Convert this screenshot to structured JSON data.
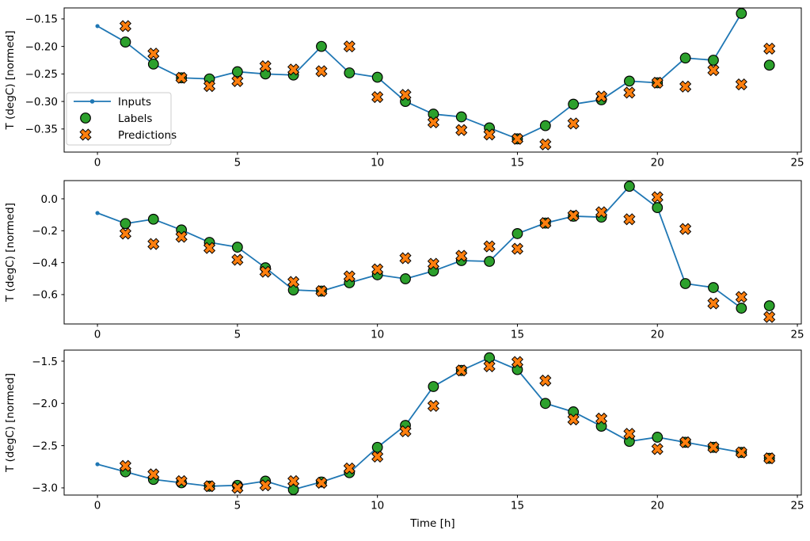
{
  "figure": {
    "xlabel": "Time [h]",
    "ylabel": "T (degC) [normed]",
    "legend": {
      "position": "upper-left-of-first-subplot",
      "items": [
        {
          "label": "Inputs",
          "marker": "line-dot",
          "color": "#1f77b4"
        },
        {
          "label": "Labels",
          "marker": "circle",
          "color": "#2ca02c"
        },
        {
          "label": "Predictions",
          "marker": "x",
          "color": "#ff7f0e"
        }
      ]
    },
    "colors": {
      "inputs_line": "#1f77b4",
      "labels_fill": "#2ca02c",
      "predictions_fill": "#ff7f0e",
      "marker_edge": "#000000",
      "axes": "#000000",
      "background": "#ffffff",
      "legend_border": "#cccccc"
    }
  },
  "chart_data": [
    {
      "type": "line",
      "subplot": 1,
      "title": "",
      "xlabel": "",
      "ylabel": "T (degC) [normed]",
      "grid": false,
      "xlim": [
        -1.19,
        25.14
      ],
      "ylim": [
        -0.392,
        -0.13
      ],
      "xticks": [
        0,
        5,
        10,
        15,
        20,
        25
      ],
      "xticklabels": [
        "0",
        "5",
        "10",
        "15",
        "20",
        "25"
      ],
      "yticks": [
        -0.15,
        -0.2,
        -0.25,
        -0.3,
        -0.35
      ],
      "yticklabels": [
        "−0.15",
        "−0.20",
        "−0.25",
        "−0.30",
        "−0.35"
      ],
      "series": [
        {
          "name": "Inputs",
          "style": "line-dot",
          "x": [
            0,
            1,
            2,
            3,
            4,
            5,
            6,
            7,
            8,
            9,
            10,
            11,
            12,
            13,
            14,
            15,
            16,
            17,
            18,
            19,
            20,
            21,
            22,
            23
          ],
          "y": [
            -0.163,
            -0.192,
            -0.232,
            -0.257,
            -0.259,
            -0.246,
            -0.25,
            -0.252,
            -0.2,
            -0.248,
            -0.256,
            -0.3,
            -0.323,
            -0.328,
            -0.348,
            -0.368,
            -0.344,
            -0.305,
            -0.297,
            -0.263,
            -0.266,
            -0.221,
            -0.225,
            -0.14
          ]
        },
        {
          "name": "Labels",
          "style": "circle",
          "x": [
            1,
            2,
            3,
            4,
            5,
            6,
            7,
            8,
            9,
            10,
            11,
            12,
            13,
            14,
            15,
            16,
            17,
            18,
            19,
            20,
            21,
            22,
            23,
            24
          ],
          "y": [
            -0.192,
            -0.232,
            -0.257,
            -0.259,
            -0.246,
            -0.25,
            -0.252,
            -0.2,
            -0.248,
            -0.256,
            -0.3,
            -0.323,
            -0.328,
            -0.348,
            -0.368,
            -0.344,
            -0.305,
            -0.297,
            -0.263,
            -0.266,
            -0.221,
            -0.225,
            -0.14,
            -0.234
          ]
        },
        {
          "name": "Predictions",
          "style": "x",
          "x": [
            1,
            2,
            3,
            4,
            5,
            6,
            7,
            8,
            9,
            10,
            11,
            12,
            13,
            14,
            15,
            16,
            17,
            18,
            19,
            20,
            21,
            22,
            23,
            24
          ],
          "y": [
            -0.163,
            -0.213,
            -0.257,
            -0.272,
            -0.263,
            -0.236,
            -0.242,
            -0.245,
            -0.2,
            -0.292,
            -0.288,
            -0.338,
            -0.352,
            -0.36,
            -0.368,
            -0.378,
            -0.34,
            -0.291,
            -0.284,
            -0.266,
            -0.273,
            -0.243,
            -0.269,
            -0.204
          ]
        }
      ]
    },
    {
      "type": "line",
      "subplot": 2,
      "title": "",
      "xlabel": "",
      "ylabel": "T (degC) [normed]",
      "grid": false,
      "xlim": [
        -1.19,
        25.14
      ],
      "ylim": [
        -0.784,
        0.114
      ],
      "xticks": [
        0,
        5,
        10,
        15,
        20,
        25
      ],
      "xticklabels": [
        "0",
        "5",
        "10",
        "15",
        "20",
        "25"
      ],
      "yticks": [
        0.0,
        -0.2,
        -0.4,
        -0.6
      ],
      "yticklabels": [
        "0.0",
        "−0.2",
        "−0.4",
        "−0.6"
      ],
      "series": [
        {
          "name": "Inputs",
          "style": "line-dot",
          "x": [
            0,
            1,
            2,
            3,
            4,
            5,
            6,
            7,
            8,
            9,
            10,
            11,
            12,
            13,
            14,
            15,
            16,
            17,
            18,
            19,
            20,
            21,
            22,
            23
          ],
          "y": [
            -0.089,
            -0.155,
            -0.128,
            -0.195,
            -0.273,
            -0.303,
            -0.432,
            -0.571,
            -0.578,
            -0.526,
            -0.476,
            -0.501,
            -0.452,
            -0.387,
            -0.392,
            -0.218,
            -0.152,
            -0.109,
            -0.115,
            0.078,
            -0.055,
            -0.531,
            -0.556,
            -0.685
          ]
        },
        {
          "name": "Labels",
          "style": "circle",
          "x": [
            1,
            2,
            3,
            4,
            5,
            6,
            7,
            8,
            9,
            10,
            11,
            12,
            13,
            14,
            15,
            16,
            17,
            18,
            19,
            20,
            21,
            22,
            23,
            24
          ],
          "y": [
            -0.155,
            -0.128,
            -0.195,
            -0.273,
            -0.303,
            -0.432,
            -0.571,
            -0.578,
            -0.526,
            -0.476,
            -0.501,
            -0.452,
            -0.387,
            -0.392,
            -0.218,
            -0.152,
            -0.109,
            -0.115,
            0.078,
            -0.055,
            -0.531,
            -0.556,
            -0.685,
            -0.67
          ]
        },
        {
          "name": "Predictions",
          "style": "x",
          "x": [
            1,
            2,
            3,
            4,
            5,
            6,
            7,
            8,
            9,
            10,
            11,
            12,
            13,
            14,
            15,
            16,
            17,
            18,
            19,
            20,
            21,
            22,
            23,
            24
          ],
          "y": [
            -0.218,
            -0.283,
            -0.238,
            -0.308,
            -0.382,
            -0.457,
            -0.521,
            -0.578,
            -0.486,
            -0.442,
            -0.372,
            -0.407,
            -0.357,
            -0.298,
            -0.313,
            -0.152,
            -0.105,
            -0.084,
            -0.128,
            0.01,
            -0.189,
            -0.655,
            -0.615,
            -0.74
          ]
        }
      ]
    },
    {
      "type": "line",
      "subplot": 3,
      "title": "",
      "xlabel": "Time [h]",
      "ylabel": "T (degC) [normed]",
      "grid": false,
      "xlim": [
        -1.19,
        25.14
      ],
      "ylim": [
        -3.085,
        -1.369
      ],
      "xticks": [
        0,
        5,
        10,
        15,
        20,
        25
      ],
      "xticklabels": [
        "0",
        "5",
        "10",
        "15",
        "20",
        "25"
      ],
      "yticks": [
        -1.5,
        -2.0,
        -2.5,
        -3.0
      ],
      "yticklabels": [
        "−1.5",
        "−2.0",
        "−2.5",
        "−3.0"
      ],
      "series": [
        {
          "name": "Inputs",
          "style": "line-dot",
          "x": [
            0,
            1,
            2,
            3,
            4,
            5,
            6,
            7,
            8,
            9,
            10,
            11,
            12,
            13,
            14,
            15,
            16,
            17,
            18,
            19,
            20,
            21,
            22,
            23
          ],
          "y": [
            -2.72,
            -2.81,
            -2.9,
            -2.94,
            -2.98,
            -2.97,
            -2.92,
            -3.02,
            -2.93,
            -2.82,
            -2.52,
            -2.26,
            -1.8,
            -1.61,
            -1.46,
            -1.6,
            -2.0,
            -2.1,
            -2.27,
            -2.45,
            -2.4,
            -2.46,
            -2.52,
            -2.58
          ]
        },
        {
          "name": "Labels",
          "style": "circle",
          "x": [
            1,
            2,
            3,
            4,
            5,
            6,
            7,
            8,
            9,
            10,
            11,
            12,
            13,
            14,
            15,
            16,
            17,
            18,
            19,
            20,
            21,
            22,
            23,
            24
          ],
          "y": [
            -2.81,
            -2.9,
            -2.94,
            -2.98,
            -2.97,
            -2.92,
            -3.02,
            -2.93,
            -2.82,
            -2.52,
            -2.26,
            -1.8,
            -1.61,
            -1.46,
            -1.6,
            -2.0,
            -2.1,
            -2.27,
            -2.45,
            -2.4,
            -2.46,
            -2.52,
            -2.58,
            -2.65
          ]
        },
        {
          "name": "Predictions",
          "style": "x",
          "x": [
            1,
            2,
            3,
            4,
            5,
            6,
            7,
            8,
            9,
            10,
            11,
            12,
            13,
            14,
            15,
            16,
            17,
            18,
            19,
            20,
            21,
            22,
            23,
            24
          ],
          "y": [
            -2.74,
            -2.84,
            -2.92,
            -2.98,
            -3.0,
            -2.97,
            -2.92,
            -2.94,
            -2.77,
            -2.63,
            -2.33,
            -2.03,
            -1.61,
            -1.56,
            -1.51,
            -1.73,
            -2.19,
            -2.18,
            -2.36,
            -2.54,
            -2.46,
            -2.52,
            -2.58,
            -2.65
          ]
        }
      ]
    }
  ]
}
